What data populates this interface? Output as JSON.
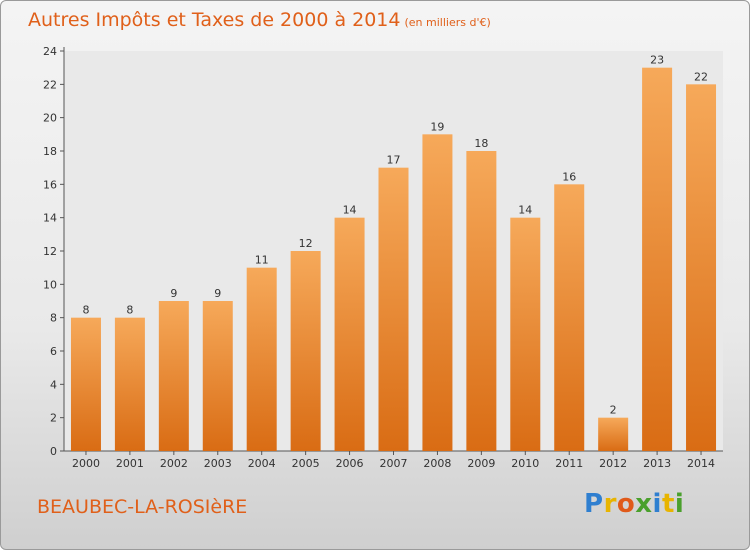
{
  "header": {
    "title": "Autres Impôts et Taxes de 2000 à 2014",
    "subtitle": "(en milliers d'€)"
  },
  "footer": {
    "commune": "BEAUBEC-LA-ROSIèRE",
    "brand": {
      "text": "Proxiti",
      "letters": [
        {
          "char": "P",
          "color": "#2f7fd0"
        },
        {
          "char": "r",
          "color": "#e8b400"
        },
        {
          "char": "o",
          "color": "#e05a1a"
        },
        {
          "char": "x",
          "color": "#4aa02c"
        },
        {
          "char": "i",
          "color": "#2f7fd0"
        },
        {
          "char": "t",
          "color": "#e8b400"
        },
        {
          "char": "i",
          "color": "#4aa02c"
        }
      ]
    }
  },
  "colors": {
    "accent": "#e0601a",
    "bar_light": "#f6a95a",
    "bar_dark": "#d96c14"
  },
  "chart_data": {
    "type": "bar",
    "title": "Autres Impôts et Taxes de 2000 à 2014",
    "subtitle": "(en milliers d'€)",
    "xlabel": "",
    "ylabel": "",
    "categories": [
      "2000",
      "2001",
      "2002",
      "2003",
      "2004",
      "2005",
      "2006",
      "2007",
      "2008",
      "2009",
      "2010",
      "2011",
      "2012",
      "2013",
      "2014"
    ],
    "values": [
      8,
      8,
      9,
      9,
      11,
      12,
      14,
      17,
      19,
      18,
      14,
      16,
      2,
      23,
      22
    ],
    "ylim": [
      0,
      24
    ],
    "yticks": [
      0,
      2,
      4,
      6,
      8,
      10,
      12,
      14,
      16,
      18,
      20,
      22,
      24
    ],
    "grid": false,
    "data_labels": true
  }
}
